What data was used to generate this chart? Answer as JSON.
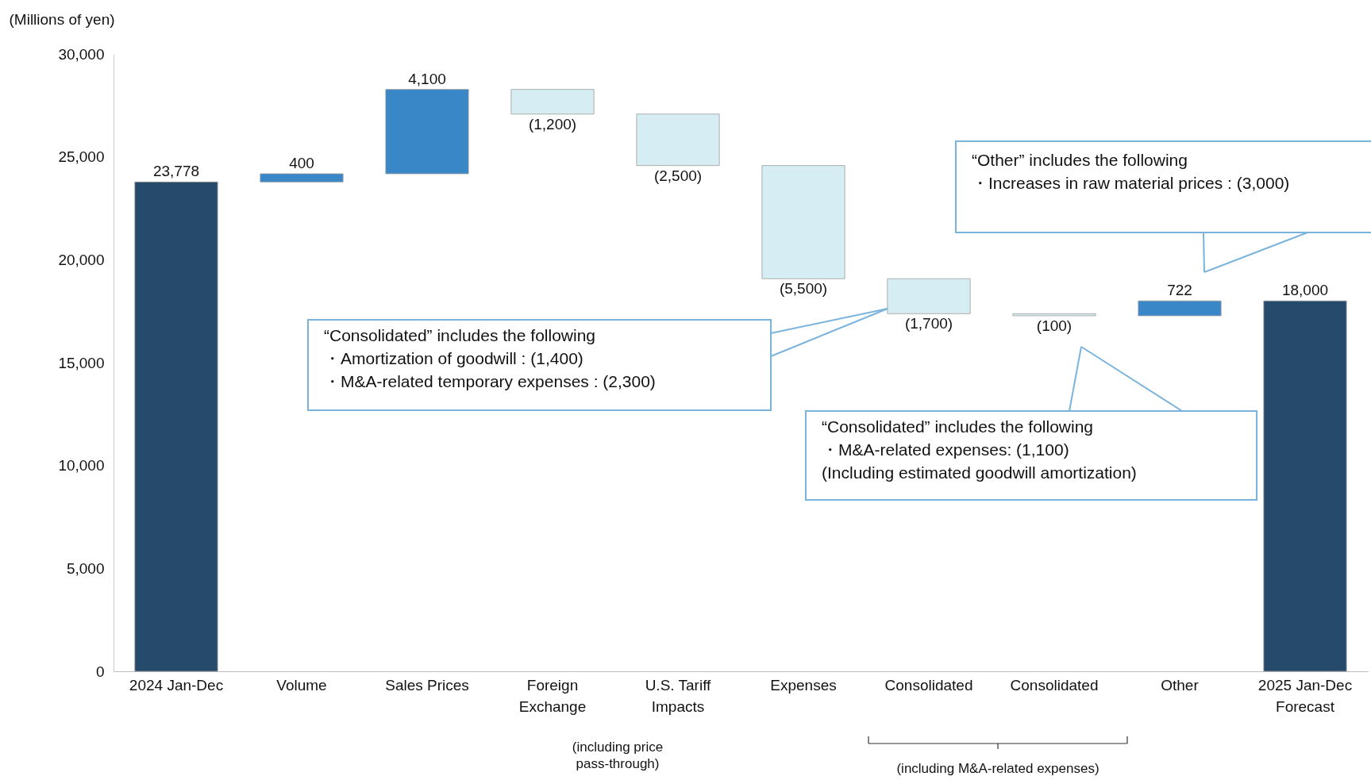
{
  "chart_data": {
    "type": "bar",
    "ylabel": "(Millions of yen)",
    "categories": [
      "2024 Jan-Dec",
      "Volume",
      "Sales Prices",
      "Foreign Exchange",
      "U.S. Tariff Impacts",
      "Expenses",
      "Consolidated",
      "Consolidated",
      "Other",
      "2025 Jan-Dec Forecast"
    ],
    "values": [
      23778,
      400,
      4100,
      -1200,
      -2500,
      -5500,
      -1700,
      -100,
      722,
      18000
    ],
    "base": [
      0,
      23778,
      24178,
      28278,
      27078,
      24578,
      19078,
      17378,
      17278,
      0
    ],
    "colors": [
      "#264a6b",
      "#3a87c8",
      "#3a87c8",
      "#d6eef3",
      "#d6eef3",
      "#d6eef3",
      "#d6eef3",
      "#d6eef3",
      "#3a87c8",
      "#264a6b"
    ],
    "value_labels": [
      "23,778",
      "400",
      "4,100",
      "(1,200)",
      "(2,500)",
      "(5,500)",
      "(1,700)",
      "(100)",
      "722",
      "18,000"
    ],
    "ylim": [
      0,
      30000
    ],
    "yticks": [
      0,
      {
        "value": 5000,
        "label": "5,000"
      },
      {
        "value": 10000,
        "label": "10,000"
      },
      {
        "value": 15000,
        "label": "15,000"
      },
      {
        "value": 20000,
        "label": "20,000"
      },
      {
        "value": 25000,
        "label": "25,000"
      },
      {
        "value": 30000,
        "label": "30,000"
      }
    ],
    "annotations": [
      "“Consolidated” includes the following\n・Amortization of goodwill               : (1,400)\n・M&A-related temporary expenses : (2,300)",
      "“Consolidated” includes the following\n・M&A-related expenses: (1,100)\n (Including estimated goodwill amortization)",
      "“Other” includes the following\n・Increases in raw material prices : (3,000)",
      "(including price\npass-through)",
      "(including M&A-related expenses)"
    ]
  }
}
